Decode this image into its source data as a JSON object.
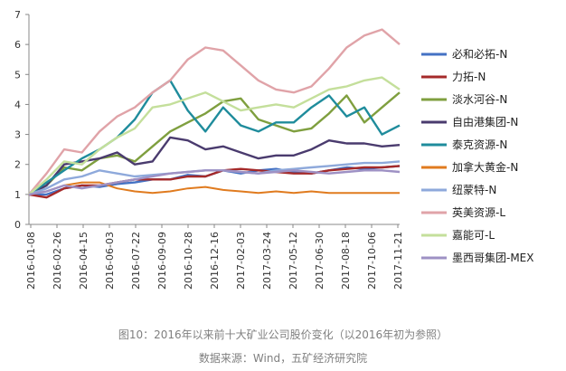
{
  "chart_data": {
    "type": "line",
    "title": "图10：2016年以来前十大矿业公司股价变化（以2016年初为参照）",
    "source": "数据来源：Wind，五矿经济研究院",
    "xlabel": "",
    "ylabel": "",
    "ylim": [
      0,
      7
    ],
    "yticks": [
      0,
      1,
      2,
      3,
      4,
      5,
      6,
      7
    ],
    "grid": false,
    "legend_position": "right",
    "x_ticks": [
      "2016-01-08",
      "2016-02-26",
      "2016-04-15",
      "2016-06-03",
      "2016-07-22",
      "2016-09-09",
      "2016-10-28",
      "2016-12-16",
      "2017-02-03",
      "2017-03-24",
      "2017-05-12",
      "2017-06-30",
      "2017-08-18",
      "2017-10-06",
      "2017-11-21"
    ],
    "series": [
      {
        "name": "必和必拓-N",
        "color": "#4472c4",
        "width": 2.4,
        "values": [
          1.0,
          1.0,
          1.2,
          1.3,
          1.25,
          1.35,
          1.4,
          1.5,
          1.5,
          1.65,
          1.6,
          1.8,
          1.7,
          1.8,
          1.85,
          1.75,
          1.7,
          1.8,
          1.9,
          1.85,
          1.9,
          1.95
        ]
      },
      {
        "name": "力拓-N",
        "color": "#a52a2a",
        "width": 2.4,
        "values": [
          1.0,
          0.9,
          1.2,
          1.3,
          1.3,
          1.4,
          1.5,
          1.5,
          1.5,
          1.6,
          1.6,
          1.8,
          1.85,
          1.8,
          1.75,
          1.7,
          1.7,
          1.8,
          1.85,
          1.9,
          1.9,
          1.95
        ]
      },
      {
        "name": "淡水河谷-N",
        "color": "#7f9f3f",
        "width": 2.4,
        "values": [
          1.0,
          1.3,
          1.9,
          1.8,
          2.2,
          2.3,
          2.1,
          2.6,
          3.1,
          3.4,
          3.7,
          4.1,
          4.2,
          3.5,
          3.3,
          3.1,
          3.2,
          3.7,
          4.3,
          3.4,
          3.9,
          4.4
        ]
      },
      {
        "name": "自由港集团-N",
        "color": "#4a3b6e",
        "width": 2.4,
        "values": [
          1.0,
          1.3,
          2.0,
          2.1,
          2.2,
          2.4,
          2.0,
          2.1,
          2.9,
          2.8,
          2.5,
          2.6,
          2.4,
          2.2,
          2.3,
          2.3,
          2.5,
          2.8,
          2.7,
          2.7,
          2.6,
          2.65
        ]
      },
      {
        "name": "泰克资源-N",
        "color": "#1f8c9c",
        "width": 2.4,
        "values": [
          1.0,
          1.4,
          1.8,
          2.2,
          2.5,
          2.9,
          3.5,
          4.4,
          4.8,
          3.8,
          3.1,
          3.9,
          3.3,
          3.1,
          3.4,
          3.4,
          3.9,
          4.3,
          3.6,
          3.9,
          3.0,
          3.3
        ]
      },
      {
        "name": "加拿大黄金-N",
        "color": "#e07b1f",
        "width": 2.0,
        "values": [
          1.0,
          1.1,
          1.3,
          1.4,
          1.4,
          1.2,
          1.1,
          1.05,
          1.1,
          1.2,
          1.25,
          1.15,
          1.1,
          1.05,
          1.1,
          1.05,
          1.1,
          1.05,
          1.05,
          1.05,
          1.05,
          1.05
        ]
      },
      {
        "name": "纽蒙特-N",
        "color": "#8ea9db",
        "width": 2.4,
        "values": [
          1.0,
          1.2,
          1.5,
          1.6,
          1.8,
          1.7,
          1.6,
          1.65,
          1.7,
          1.75,
          1.8,
          1.8,
          1.75,
          1.7,
          1.8,
          1.85,
          1.9,
          1.95,
          2.0,
          2.05,
          2.05,
          2.1
        ]
      },
      {
        "name": "英美资源-L",
        "color": "#e0a3a8",
        "width": 2.4,
        "values": [
          1.0,
          1.7,
          2.5,
          2.4,
          3.1,
          3.6,
          3.9,
          4.4,
          4.8,
          5.5,
          5.9,
          5.8,
          5.3,
          4.8,
          4.5,
          4.4,
          4.6,
          5.2,
          5.9,
          6.3,
          6.5,
          6.0
        ]
      },
      {
        "name": "嘉能可-L",
        "color": "#c4df9b",
        "width": 2.4,
        "values": [
          1.0,
          1.5,
          2.1,
          2.0,
          2.5,
          2.9,
          3.2,
          3.9,
          4.0,
          4.2,
          4.4,
          4.1,
          3.8,
          3.9,
          4.0,
          3.9,
          4.2,
          4.5,
          4.6,
          4.8,
          4.9,
          4.5
        ]
      },
      {
        "name": "墨西哥集团-MEX",
        "color": "#9e91c4",
        "width": 2.4,
        "values": [
          1.0,
          1.1,
          1.3,
          1.2,
          1.3,
          1.4,
          1.5,
          1.6,
          1.7,
          1.75,
          1.8,
          1.8,
          1.75,
          1.7,
          1.75,
          1.8,
          1.75,
          1.7,
          1.75,
          1.8,
          1.8,
          1.75
        ]
      }
    ]
  }
}
